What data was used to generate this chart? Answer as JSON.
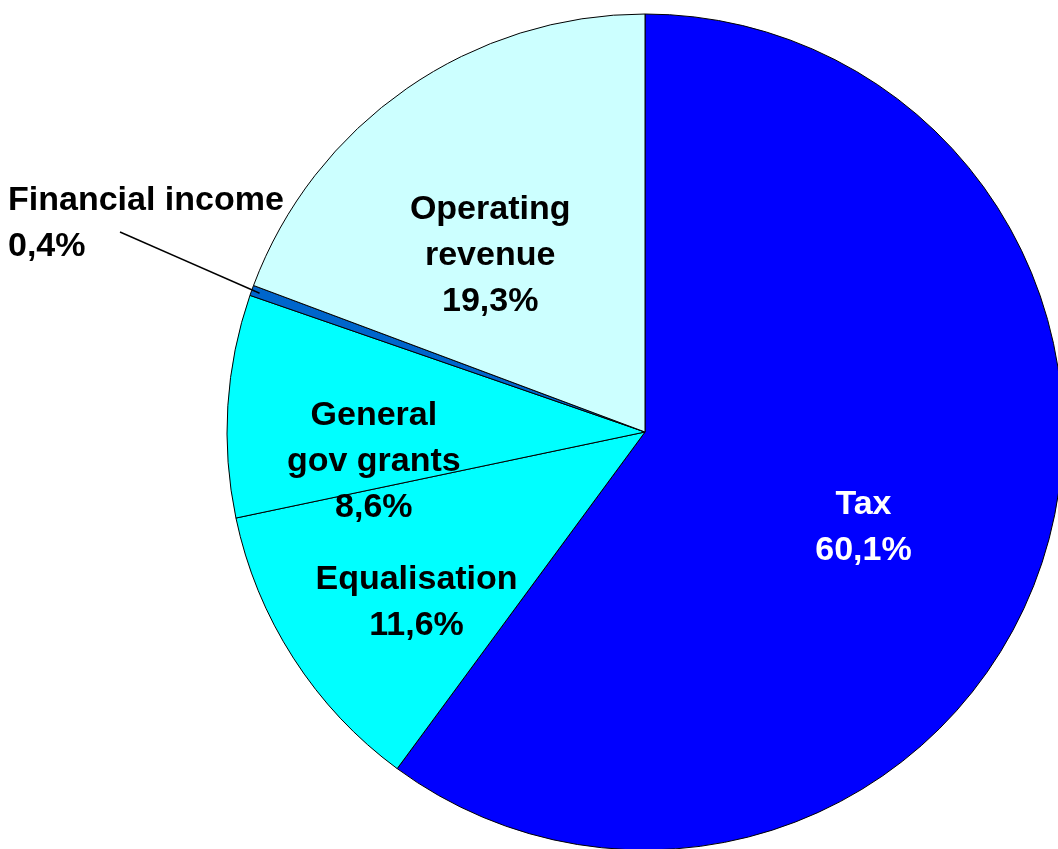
{
  "chart_data": {
    "type": "pie",
    "categories": [
      "Tax",
      "Equalisation",
      "General gov grants",
      "Financial income",
      "Operating revenue"
    ],
    "values": [
      60.1,
      11.6,
      8.6,
      0.4,
      19.3
    ],
    "colors": [
      "#0000ff",
      "#00ffff",
      "#00ffff",
      "#0066cc",
      "#ccffff"
    ],
    "value_labels": [
      "60,1%",
      "11,6%",
      "8,6%",
      "0,4%",
      "19,3%"
    ]
  }
}
